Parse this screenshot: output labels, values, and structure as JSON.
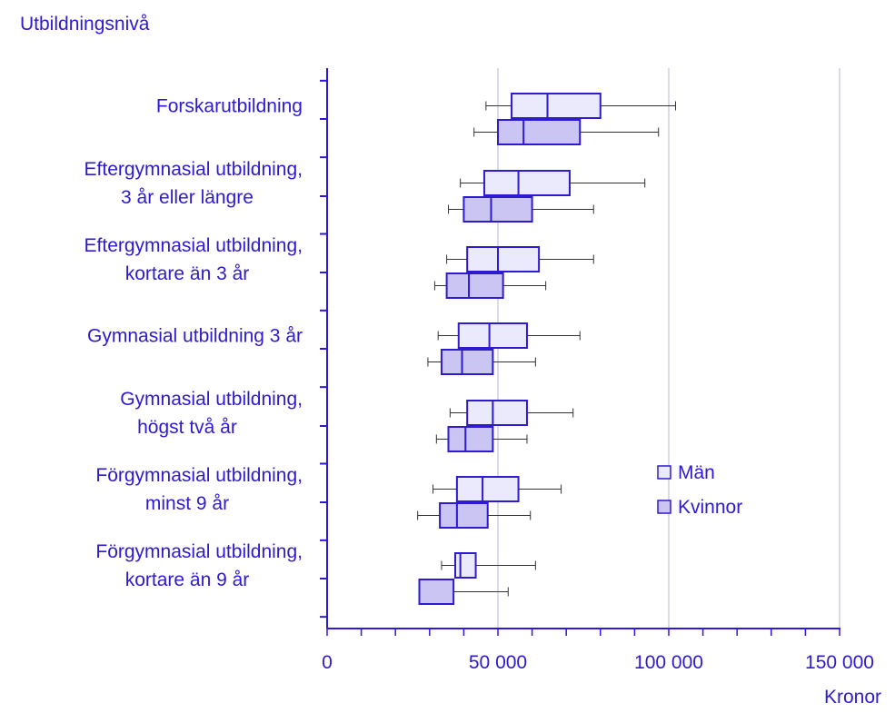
{
  "chart_data": {
    "type": "boxplot",
    "title": "",
    "ylabel": "Utbildningsnivå",
    "xlabel": "Kronor",
    "xlim": [
      0,
      150000
    ],
    "xticks": [
      0,
      50000,
      100000,
      150000
    ],
    "xtick_labels": [
      "0",
      "50 000",
      "100 000",
      "150 000"
    ],
    "grid": "vertical",
    "legend_position": "right",
    "colors": {
      "text": "#2e1ad0",
      "axis": "#2e1ad0",
      "box_stroke": "#2e1ad0",
      "men_fill": "#ebe9fc",
      "women_fill": "#cbc5f3",
      "grid": "#cfcde6",
      "whisker": "#333333"
    },
    "series": [
      {
        "name": "Män",
        "key": "men"
      },
      {
        "name": "Kvinnor",
        "key": "women"
      }
    ],
    "categories": [
      {
        "label_lines": [
          "Forskarutbildning"
        ],
        "men": {
          "min": 46500,
          "q1": 54000,
          "median": 64500,
          "q3": 80000,
          "max": 102000
        },
        "women": {
          "min": 43000,
          "q1": 50000,
          "median": 57500,
          "q3": 74000,
          "max": 97000
        }
      },
      {
        "label_lines": [
          "Eftergymnasial utbildning,",
          "3 år eller längre"
        ],
        "men": {
          "min": 39000,
          "q1": 46000,
          "median": 56000,
          "q3": 71000,
          "max": 93000
        },
        "women": {
          "min": 35500,
          "q1": 40000,
          "median": 48000,
          "q3": 60000,
          "max": 78000
        }
      },
      {
        "label_lines": [
          "Eftergymnasial utbildning,",
          "kortare än 3 år"
        ],
        "men": {
          "min": 35000,
          "q1": 41000,
          "median": 50000,
          "q3": 62000,
          "max": 78000
        },
        "women": {
          "min": 31500,
          "q1": 35000,
          "median": 41500,
          "q3": 51500,
          "max": 64000
        }
      },
      {
        "label_lines": [
          "Gymnasial utbildning 3 år"
        ],
        "men": {
          "min": 32500,
          "q1": 38500,
          "median": 47500,
          "q3": 58500,
          "max": 74000
        },
        "women": {
          "min": 29500,
          "q1": 33500,
          "median": 39500,
          "q3": 48500,
          "max": 61000
        }
      },
      {
        "label_lines": [
          "Gymnasial utbildning,",
          "högst två år"
        ],
        "men": {
          "min": 36000,
          "q1": 41000,
          "median": 48500,
          "q3": 58500,
          "max": 72000
        },
        "women": {
          "min": 32000,
          "q1": 35500,
          "median": 40500,
          "q3": 48500,
          "max": 58500
        }
      },
      {
        "label_lines": [
          "Förgymnasial utbildning,",
          "minst 9 år"
        ],
        "men": {
          "min": 31000,
          "q1": 38000,
          "median": 45500,
          "q3": 56000,
          "max": 68500
        },
        "women": {
          "min": 26500,
          "q1": 33000,
          "median": 38000,
          "q3": 47000,
          "max": 59500
        }
      },
      {
        "label_lines": [
          "Förgymnasial utbildning,",
          "kortare än 9 år"
        ],
        "men": {
          "min": 33500,
          "q1": 37500,
          "median": 39000,
          "q3": 43500,
          "max": 61000
        },
        "women": {
          "min": null,
          "q1": 27000,
          "median": null,
          "q3": 37000,
          "max": 53000
        }
      }
    ]
  }
}
